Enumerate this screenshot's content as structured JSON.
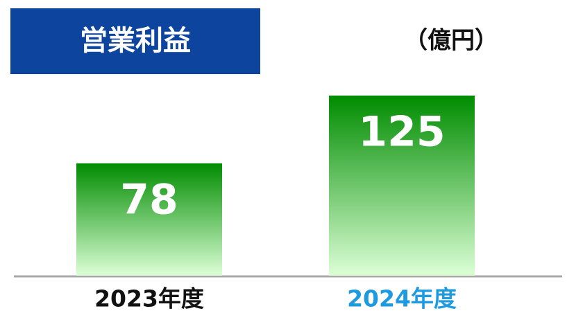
{
  "chart_data": {
    "type": "bar",
    "title": "営業利益",
    "unit": "（億円）",
    "categories": [
      "2023年度",
      "2024年度"
    ],
    "category_colors": [
      "#111111",
      "#1e9be0"
    ],
    "values": [
      78,
      125
    ],
    "colors": [
      "#008c00",
      "#dcffd6"
    ],
    "title_color": "#0c449e"
  }
}
